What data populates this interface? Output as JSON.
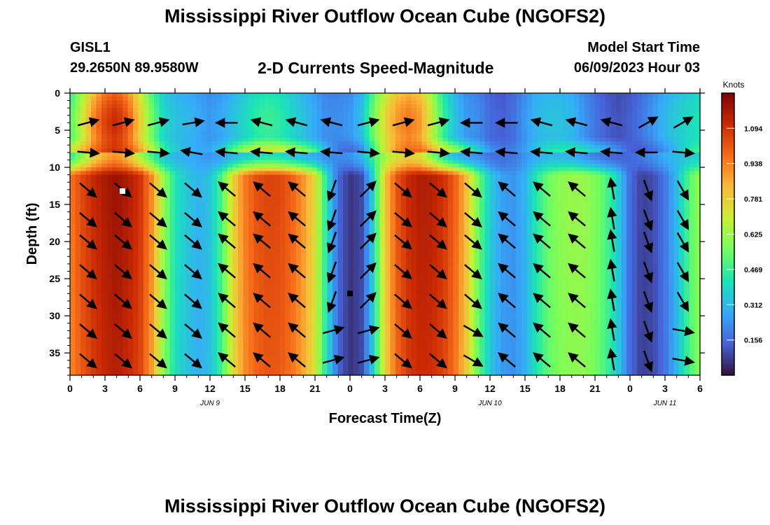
{
  "header": {
    "title": "Mississippi River Outflow Ocean Cube (NGOFS2)",
    "station": "GISL1",
    "coords": "29.2650N  89.9580W",
    "subtitle": "2-D Currents Speed-Magnitude",
    "model_start_label": "Model Start Time",
    "model_start_value": "06/09/2023 Hour 03"
  },
  "footer": {
    "title": "Mississippi River Outflow Ocean Cube (NGOFS2)"
  },
  "chart_data": {
    "type": "heatmap",
    "xlabel": "Forecast Time(Z)",
    "ylabel": "Depth (ft)",
    "x_range_hours": [
      0,
      54
    ],
    "y_range_ft": [
      0,
      38
    ],
    "x_tick_labels": [
      "0",
      "3",
      "6",
      "9",
      "12",
      "15",
      "18",
      "21",
      "0",
      "3",
      "6",
      "9",
      "12",
      "15",
      "18",
      "21",
      "0",
      "3",
      "6"
    ],
    "y_ticks": [
      0,
      5,
      10,
      15,
      20,
      25,
      30,
      35
    ],
    "date_labels": [
      {
        "text": "JUN 9",
        "hour": 12
      },
      {
        "text": "JUN 10",
        "hour": 36
      },
      {
        "text": "JUN 11",
        "hour": 51
      }
    ],
    "colorbar": {
      "unit": "Knots",
      "min": 0,
      "max": 1.25,
      "ticks": [
        1.094,
        0.938,
        0.781,
        0.625,
        0.469,
        0.312,
        0.156
      ],
      "tick_labels": [
        "1.094",
        "0.938",
        "0.781",
        "0.625",
        "0.469",
        "0.312",
        "0.156"
      ],
      "colors": [
        "#30123b",
        "#4662d7",
        "#36aaf9",
        "#1ae4b6",
        "#72fe5e",
        "#c8ef34",
        "#faba39",
        "#f66b19",
        "#ca2a04",
        "#7a0403"
      ]
    },
    "speed_profile": {
      "hours": [
        0,
        1,
        2,
        3,
        4,
        5,
        6,
        7,
        8,
        9,
        10,
        11,
        12,
        13,
        14,
        15,
        16,
        17,
        18,
        19,
        20,
        21,
        22,
        23,
        24,
        25,
        26,
        27,
        28,
        29,
        30,
        31,
        32,
        33,
        34,
        35,
        36,
        37,
        38,
        39,
        40,
        41,
        42,
        43,
        44,
        45,
        46,
        47,
        48,
        49,
        50,
        51,
        52,
        53,
        54
      ],
      "deep_knots": [
        0.95,
        1.05,
        1.12,
        1.17,
        1.2,
        1.16,
        1.1,
        0.92,
        0.62,
        0.42,
        0.35,
        0.3,
        0.34,
        0.5,
        0.78,
        0.95,
        1.03,
        1.06,
        1.05,
        1.0,
        0.9,
        0.75,
        0.42,
        0.15,
        0.06,
        0.1,
        0.38,
        0.8,
        1.02,
        1.12,
        1.16,
        1.15,
        1.1,
        1.0,
        0.82,
        0.55,
        0.36,
        0.26,
        0.24,
        0.3,
        0.44,
        0.55,
        0.6,
        0.62,
        0.62,
        0.58,
        0.5,
        0.36,
        0.16,
        0.08,
        0.1,
        0.18,
        0.32,
        0.5,
        0.62
      ],
      "surface_knots": [
        0.45,
        0.62,
        0.82,
        0.95,
        1.0,
        0.9,
        0.7,
        0.5,
        0.35,
        0.3,
        0.28,
        0.25,
        0.22,
        0.25,
        0.3,
        0.35,
        0.4,
        0.42,
        0.4,
        0.35,
        0.3,
        0.25,
        0.2,
        0.2,
        0.22,
        0.3,
        0.5,
        0.68,
        0.8,
        0.85,
        0.8,
        0.62,
        0.42,
        0.3,
        0.22,
        0.2,
        0.14,
        0.12,
        0.15,
        0.22,
        0.28,
        0.3,
        0.3,
        0.28,
        0.22,
        0.16,
        0.12,
        0.1,
        0.12,
        0.16,
        0.22,
        0.28,
        0.32,
        0.35,
        0.38
      ]
    },
    "current_vectors": {
      "hours": [
        1.5,
        4.5,
        7.5,
        10.5,
        13.5,
        16.5,
        19.5,
        22.5,
        25.5,
        28.5,
        31.5,
        34.5,
        37.5,
        40.5,
        43.5,
        46.5,
        49.5,
        52.5
      ],
      "depths_ft": [
        4,
        8,
        13,
        17,
        20,
        24,
        28,
        32,
        36
      ],
      "direction_deg_surface": [
        15,
        15,
        15,
        10,
        180,
        165,
        165,
        165,
        15,
        15,
        15,
        180,
        180,
        165,
        165,
        165,
        30,
        30
      ],
      "direction_deg_8ft": [
        -5,
        -5,
        -5,
        170,
        175,
        175,
        175,
        175,
        -5,
        -5,
        -5,
        175,
        175,
        175,
        175,
        175,
        180,
        -5
      ],
      "direction_deg_deep": [
        -40,
        -40,
        -40,
        -40,
        140,
        140,
        140,
        250,
        45,
        -40,
        -40,
        -40,
        140,
        140,
        140,
        100,
        -70,
        -60
      ],
      "direction_deg_bottom": [
        -40,
        -40,
        -40,
        -40,
        140,
        140,
        140,
        15,
        15,
        -40,
        -40,
        -30,
        140,
        140,
        140,
        100,
        -70,
        -10
      ]
    },
    "markers": [
      {
        "name": "white-marker",
        "hour": 4.5,
        "depth_ft": 13.2,
        "color": "#ffffff"
      },
      {
        "name": "black-marker",
        "hour": 24.0,
        "depth_ft": 27.0,
        "color": "#000000"
      }
    ]
  }
}
